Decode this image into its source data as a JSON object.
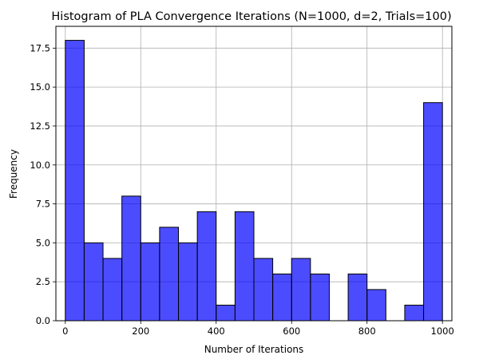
{
  "chart_data": {
    "type": "bar",
    "title": "Histogram of PLA Convergence Iterations (N=1000, d=2, Trials=100)",
    "xlabel": "Number of Iterations",
    "ylabel": "Frequency",
    "xlim": [
      -25,
      1025
    ],
    "ylim": [
      0,
      18.9
    ],
    "grid": true,
    "bar_color": "#0000ff",
    "bar_opacity": 0.7,
    "edge_color": "#000000",
    "bins": [
      {
        "start": 0,
        "end": 50,
        "count": 18
      },
      {
        "start": 50,
        "end": 100,
        "count": 5
      },
      {
        "start": 100,
        "end": 150,
        "count": 4
      },
      {
        "start": 150,
        "end": 200,
        "count": 8
      },
      {
        "start": 200,
        "end": 250,
        "count": 5
      },
      {
        "start": 250,
        "end": 300,
        "count": 6
      },
      {
        "start": 300,
        "end": 350,
        "count": 5
      },
      {
        "start": 350,
        "end": 400,
        "count": 7
      },
      {
        "start": 400,
        "end": 450,
        "count": 1
      },
      {
        "start": 450,
        "end": 500,
        "count": 7
      },
      {
        "start": 500,
        "end": 550,
        "count": 4
      },
      {
        "start": 550,
        "end": 600,
        "count": 3
      },
      {
        "start": 600,
        "end": 650,
        "count": 4
      },
      {
        "start": 650,
        "end": 700,
        "count": 3
      },
      {
        "start": 700,
        "end": 750,
        "count": 0
      },
      {
        "start": 750,
        "end": 800,
        "count": 3
      },
      {
        "start": 800,
        "end": 850,
        "count": 2
      },
      {
        "start": 850,
        "end": 900,
        "count": 0
      },
      {
        "start": 900,
        "end": 950,
        "count": 1
      },
      {
        "start": 950,
        "end": 1000,
        "count": 14
      }
    ],
    "xticks": [
      0,
      200,
      400,
      600,
      800,
      1000
    ],
    "xtick_labels": [
      "0",
      "200",
      "400",
      "600",
      "800",
      "1000"
    ],
    "yticks": [
      0,
      2.5,
      5,
      7.5,
      10,
      12.5,
      15,
      17.5
    ],
    "ytick_labels": [
      "0.0",
      "2.5",
      "5.0",
      "7.5",
      "10.0",
      "12.5",
      "15.0",
      "17.5"
    ]
  }
}
